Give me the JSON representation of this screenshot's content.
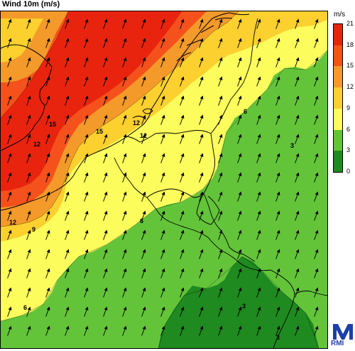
{
  "title": "Wind 10m (m/s)",
  "unit": "m/s",
  "legend": {
    "ticks": [
      "21",
      "18",
      "15",
      "12",
      "9",
      "6",
      "3",
      "0"
    ],
    "bands": [
      {
        "from": 18,
        "to": 21,
        "color": "#e8240e"
      },
      {
        "from": 15,
        "to": 18,
        "color": "#f5511c"
      },
      {
        "from": 12,
        "to": 15,
        "color": "#f49a2a"
      },
      {
        "from": 9,
        "to": 12,
        "color": "#fbd02f"
      },
      {
        "from": 6,
        "to": 9,
        "color": "#fcfc5c"
      },
      {
        "from": 3,
        "to": 6,
        "color": "#63c43a"
      },
      {
        "from": 0,
        "to": 3,
        "color": "#1f8a1f"
      }
    ]
  },
  "contour_labels": [
    "15",
    "15",
    "12",
    "12",
    "12",
    "9",
    "6",
    "6",
    "6",
    "3",
    "3",
    "3",
    "12"
  ],
  "logo_text": "RMI",
  "colors": {
    "border": "#000000",
    "arrow": "#000000"
  }
}
